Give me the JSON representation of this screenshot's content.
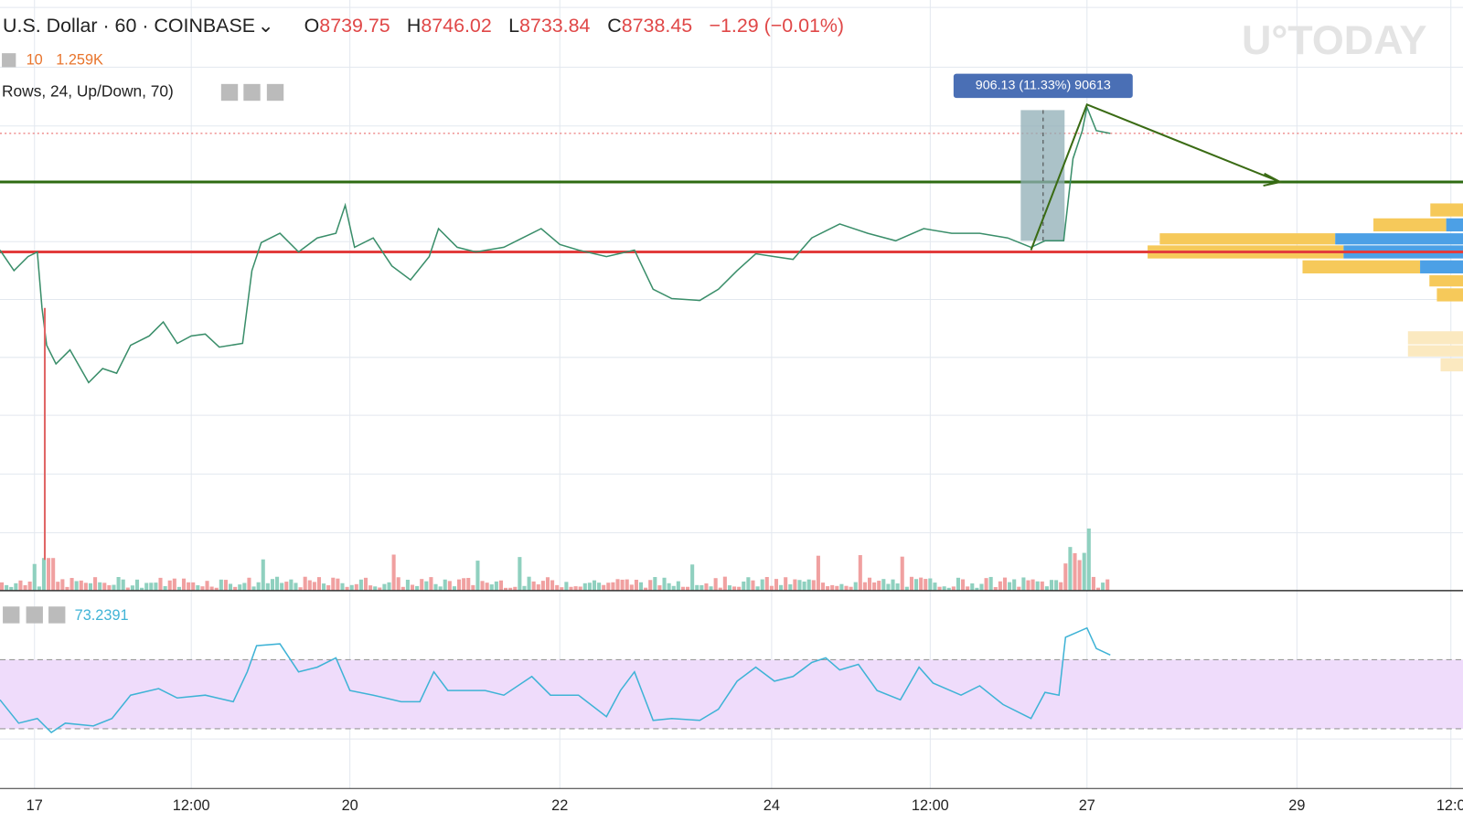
{
  "header": {
    "symbol": "U.S. Dollar · 60 · COINBASE",
    "ohlc": [
      {
        "label": "O",
        "value": "8739.75"
      },
      {
        "label": "H",
        "value": "8746.02"
      },
      {
        "label": "L",
        "value": "8733.84"
      },
      {
        "label": "C",
        "value": "8738.45"
      }
    ],
    "change": "−1.29 (−0.01%)"
  },
  "volume": {
    "length": "10",
    "value": "1.259K"
  },
  "indicator": "Rows, 24, Up/Down, 70)",
  "rsi": "73.2391",
  "measure": "906.13 (11.33%) 90613",
  "watermark": "U°TODAY",
  "x_axis": [
    "17",
    "12:00",
    "20",
    "22",
    "24",
    "12:00",
    "27",
    "29",
    "12:0"
  ]
}
